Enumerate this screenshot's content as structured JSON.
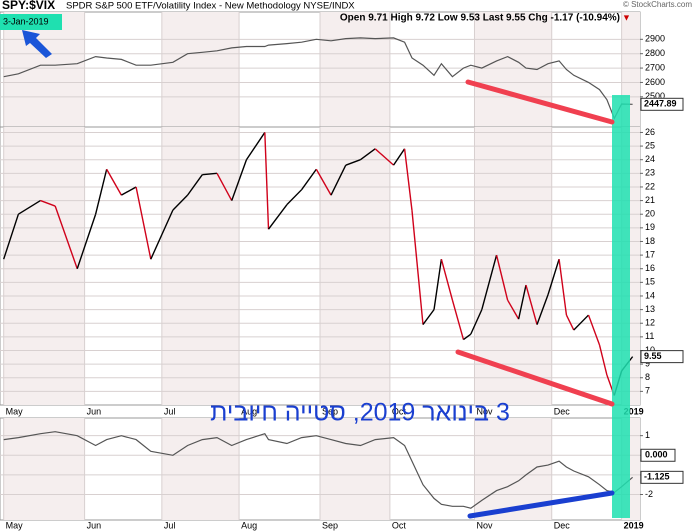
{
  "header": {
    "symbol": "SPY:$VIX",
    "description": "SPDR S&P 500 ETF/Volatility Index - New Methodology NYSE/INDX",
    "ohlc": "Open 9.71 High 9.72 Low 9.53 Last 9.55 Chg -1.17 (-10.94%)",
    "chg_arrow": "▼",
    "date": "3-Jan-2019",
    "copyright": "© StockCharts.com"
  },
  "annotation": "3 בינואר 2019, סטייה חיובית",
  "chart_data": [
    {
      "type": "line",
      "color": "#555555",
      "x": [
        0,
        4,
        10,
        14,
        20,
        25,
        28,
        32,
        36,
        40,
        46,
        50,
        54,
        58,
        62,
        66,
        71,
        72,
        77,
        81,
        85,
        89,
        93,
        97,
        101,
        106,
        109,
        111,
        114,
        117,
        119,
        122,
        125,
        127,
        130,
        134,
        137,
        140,
        142,
        145,
        148,
        151,
        153,
        155,
        159,
        162,
        164,
        166,
        168,
        171
      ],
      "values": [
        2640,
        2660,
        2720,
        2720,
        2730,
        2780,
        2770,
        2760,
        2720,
        2720,
        2740,
        2800,
        2810,
        2820,
        2840,
        2850,
        2850,
        2860,
        2870,
        2880,
        2900,
        2890,
        2905,
        2910,
        2905,
        2910,
        2880,
        2770,
        2720,
        2650,
        2730,
        2640,
        2700,
        2720,
        2700,
        2750,
        2780,
        2740,
        2700,
        2690,
        2730,
        2750,
        2690,
        2650,
        2600,
        2550,
        2480,
        2350,
        2450,
        2447.89
      ],
      "xlim": [
        -1,
        173
      ],
      "xticks": [
        0,
        22,
        43,
        64,
        86,
        105,
        128,
        149,
        168
      ],
      "ylim": [
        2290,
        3090
      ],
      "yticks": [
        2500,
        2600,
        2700,
        2800,
        2900
      ],
      "grid": true
    },
    {
      "type": "updown-line",
      "color": "#000000",
      "down_color": "#d0021b",
      "x": [
        0,
        4,
        10,
        14,
        20,
        25,
        28,
        32,
        36,
        40,
        46,
        50,
        54,
        58,
        62,
        66,
        71,
        72,
        77,
        81,
        85,
        89,
        93,
        97,
        101,
        106,
        109,
        111,
        114,
        117,
        119,
        122,
        125,
        127,
        130,
        134,
        137,
        140,
        142,
        145,
        148,
        151,
        153,
        155,
        159,
        162,
        164,
        166,
        168,
        171
      ],
      "values": [
        16.7,
        20,
        21,
        20.6,
        16,
        20,
        23.3,
        21.4,
        22,
        16.7,
        20.3,
        21.4,
        22.9,
        23,
        21,
        24,
        26,
        18.9,
        20.7,
        21.8,
        23.3,
        21.4,
        23.6,
        24,
        24.8,
        23.6,
        24.8,
        20.3,
        11.9,
        13,
        16.7,
        13.7,
        10.8,
        11.2,
        13,
        17,
        13.7,
        12.3,
        14.8,
        11.9,
        14.1,
        16.7,
        12.6,
        11.5,
        12.6,
        10.4,
        8.2,
        6.7,
        8.5,
        9.55
      ],
      "xlim": [
        -1,
        173
      ],
      "xticks": [
        {
          "value": 0,
          "label": "May"
        },
        {
          "value": 22,
          "label": "Jun"
        },
        {
          "value": 43,
          "label": "Jul"
        },
        {
          "value": 64,
          "label": "Aug"
        },
        {
          "value": 86,
          "label": "Sep"
        },
        {
          "value": 105,
          "label": "Oct"
        },
        {
          "value": 128,
          "label": "Nov"
        },
        {
          "value": 149,
          "label": "Dec"
        },
        {
          "value": 168,
          "label": "2019"
        }
      ],
      "ylim": [
        6,
        26.4
      ],
      "yticks": [
        7,
        8,
        9,
        10,
        11,
        12,
        13,
        14,
        15,
        16,
        17,
        18,
        19,
        20,
        21,
        22,
        23,
        24,
        25,
        26
      ],
      "grid": true
    },
    {
      "type": "line",
      "color": "#555555",
      "x": [
        0,
        4,
        10,
        14,
        20,
        25,
        28,
        32,
        36,
        40,
        46,
        50,
        54,
        58,
        62,
        66,
        71,
        72,
        77,
        81,
        85,
        89,
        93,
        97,
        101,
        106,
        109,
        111,
        114,
        117,
        119,
        122,
        125,
        127,
        130,
        134,
        137,
        140,
        142,
        145,
        148,
        151,
        153,
        155,
        159,
        162,
        164,
        166,
        168,
        171
      ],
      "values": [
        0.8,
        0.9,
        1.1,
        1.2,
        1.0,
        0.5,
        0.8,
        1.0,
        0.8,
        0.2,
        0.0,
        0.5,
        0.8,
        0.9,
        0.5,
        0.8,
        1.1,
        0.8,
        0.6,
        0.9,
        1.0,
        0.8,
        0.6,
        0.5,
        0.8,
        0.9,
        0.5,
        -0.3,
        -1.5,
        -2.2,
        -2.5,
        -2.6,
        -2.6,
        -2.7,
        -2.3,
        -1.8,
        -1.6,
        -1.3,
        -1.0,
        -0.6,
        -0.5,
        -0.3,
        -0.6,
        -0.8,
        -1.1,
        -1.5,
        -1.8,
        -1.9,
        -1.6,
        -1.125
      ],
      "xlim": [
        -1,
        173
      ],
      "xticks": [
        {
          "value": 0,
          "label": "May"
        },
        {
          "value": 22,
          "label": "Jun"
        },
        {
          "value": 43,
          "label": "Jul"
        },
        {
          "value": 64,
          "label": "Aug"
        },
        {
          "value": 86,
          "label": "Sep"
        },
        {
          "value": 105,
          "label": "Oct"
        },
        {
          "value": 128,
          "label": "Nov"
        },
        {
          "value": 149,
          "label": "Dec"
        },
        {
          "value": 168,
          "label": "2019"
        }
      ],
      "ylim": [
        -3.3,
        1.9
      ],
      "yticks": [
        1,
        {
          "value": 0,
          "label": "0.000"
        },
        -1,
        -2
      ],
      "grid": true
    }
  ]
}
